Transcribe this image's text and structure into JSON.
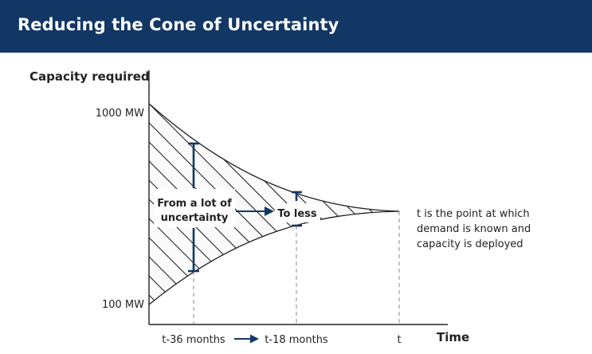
{
  "header": {
    "title": "Reducing the Cone of Uncertainty"
  },
  "diagram": {
    "y_axis_label": "Capacity required",
    "x_axis_label": "Time",
    "y_ticks": {
      "top": "1000 MW",
      "bottom": "100 MW"
    },
    "x_ticks": {
      "start": "t-36 months",
      "middle": "t-18 months",
      "end": "t"
    },
    "annotations": {
      "from_line1": "From a lot of",
      "from_line2": "uncertainty",
      "to_less": "To less",
      "note_line1": "t is the point at which",
      "note_line2": "demand is known and",
      "note_line3": "capacity is deployed"
    },
    "colors": {
      "navy": "#123765",
      "ink": "#222222",
      "dash": "#8a8a8a"
    }
  }
}
